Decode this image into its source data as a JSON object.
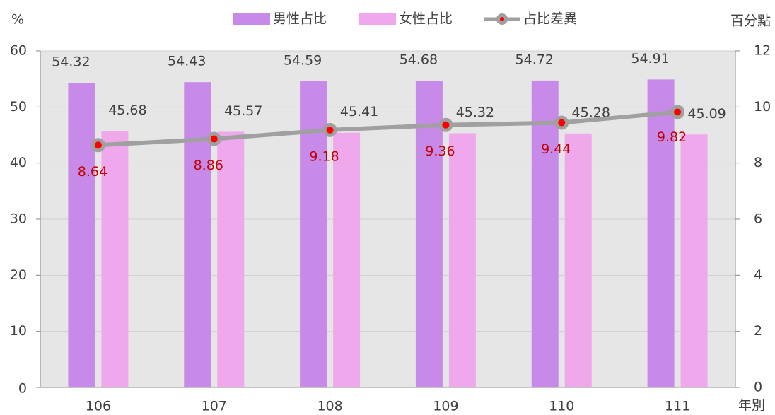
{
  "chart_data": {
    "type": "bar",
    "y_label": "%",
    "y2_label": "百分點",
    "x_label": "年別",
    "categories": [
      "106",
      "107",
      "108",
      "109",
      "110",
      "111"
    ],
    "series": [
      {
        "name": "男性占比",
        "type": "bar",
        "color": "#c88ae8",
        "values": [
          54.32,
          54.43,
          54.59,
          54.68,
          54.72,
          54.91
        ]
      },
      {
        "name": "女性占比",
        "type": "bar",
        "color": "#f0a8ec",
        "values": [
          45.68,
          45.57,
          45.41,
          45.32,
          45.28,
          45.09
        ]
      },
      {
        "name": "占比差異",
        "type": "line",
        "axis": "y2",
        "color": "#a0a0a0",
        "marker_color": "#ff0000",
        "label_color": "#c00000",
        "values": [
          8.64,
          8.86,
          9.18,
          9.36,
          9.44,
          9.82
        ]
      }
    ],
    "ylim": [
      0,
      60
    ],
    "yticks": [
      0,
      10,
      20,
      30,
      40,
      50,
      60
    ],
    "y2lim": [
      0,
      12
    ],
    "y2ticks": [
      0,
      2,
      4,
      6,
      8,
      10,
      12
    ],
    "grid": true,
    "legend": "top"
  }
}
